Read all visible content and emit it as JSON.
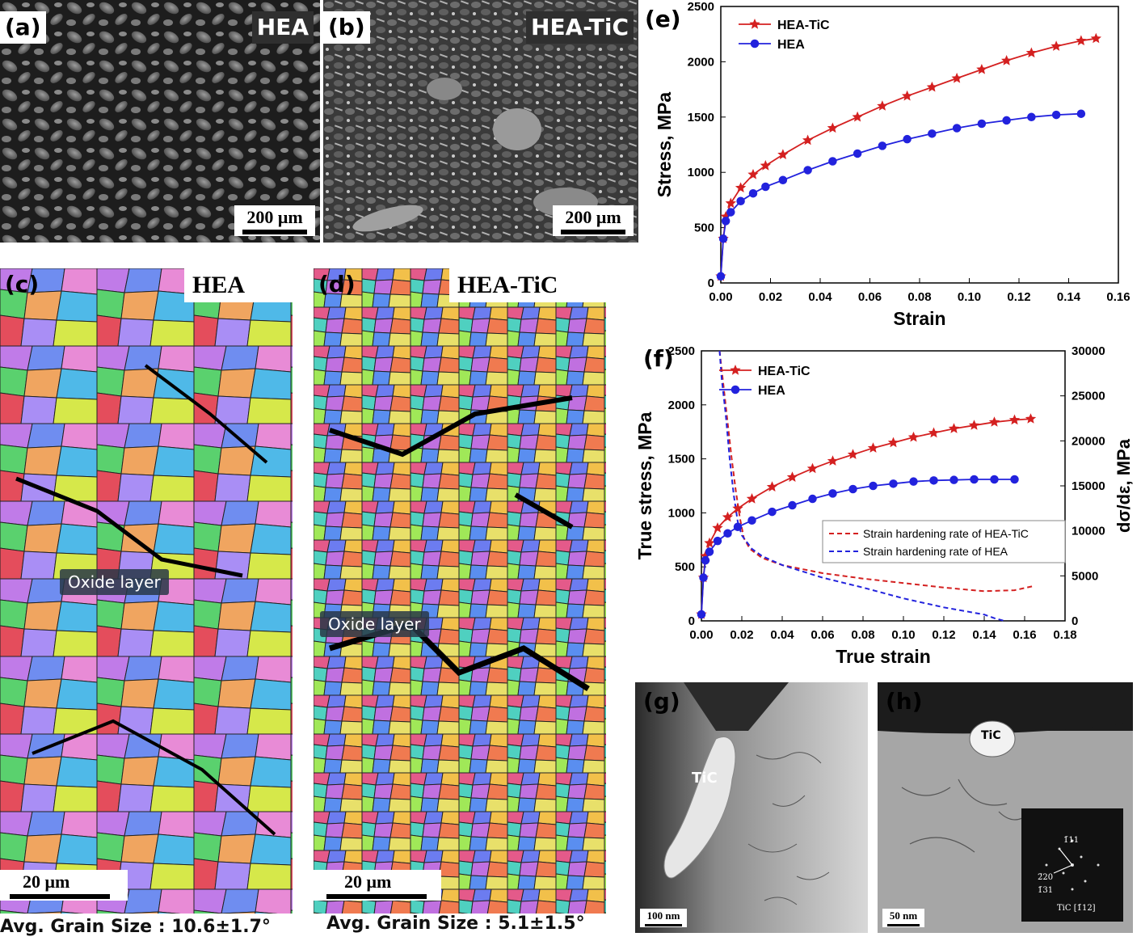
{
  "panels": {
    "a": {
      "tag": "(a)",
      "label": "HEA",
      "scale": "200 μm"
    },
    "b": {
      "tag": "(b)",
      "label": "HEA-TiC",
      "scale": "200 μm"
    },
    "c": {
      "tag": "(c)",
      "label": "HEA",
      "oxide": "Oxide layer",
      "scale": "20 μm",
      "caption": "Avg. Grain Size : 10.6±1.7°"
    },
    "d": {
      "tag": "(d)",
      "label": "HEA-TiC",
      "oxide": "Oxide layer",
      "scale": "20 μm",
      "caption": "Avg. Grain Size : 5.1±1.5°"
    },
    "e": {
      "tag": "(e)"
    },
    "f": {
      "tag": "(f)"
    },
    "g": {
      "tag": "(g)",
      "particle": "TiC",
      "scale": "100 nm"
    },
    "h": {
      "tag": "(h)",
      "particle": "TiC",
      "scale": "50 nm",
      "saed": {
        "labels": [
          "1̄11",
          "2̄20",
          "1̄31"
        ],
        "zone": "TiC [1̄12]"
      }
    }
  },
  "chart_data": [
    {
      "id": "e",
      "type": "line",
      "xlabel": "Strain",
      "ylabel": "Stress, MPa",
      "xlim": [
        0.0,
        0.16
      ],
      "ylim": [
        0,
        2500
      ],
      "xticks": [
        "0.00",
        "0.02",
        "0.04",
        "0.06",
        "0.08",
        "0.10",
        "0.12",
        "0.14",
        "0.16"
      ],
      "yticks": [
        "0",
        "500",
        "1000",
        "1500",
        "2000",
        "2500"
      ],
      "legend_position": "top-left",
      "series": [
        {
          "name": "HEA-TiC",
          "color": "#d42020",
          "marker": "star",
          "x": [
            0.0,
            0.001,
            0.002,
            0.004,
            0.008,
            0.013,
            0.018,
            0.025,
            0.035,
            0.045,
            0.055,
            0.065,
            0.075,
            0.085,
            0.095,
            0.105,
            0.115,
            0.125,
            0.135,
            0.145,
            0.151
          ],
          "y": [
            60,
            400,
            600,
            720,
            860,
            980,
            1060,
            1160,
            1290,
            1400,
            1500,
            1600,
            1690,
            1770,
            1850,
            1930,
            2010,
            2080,
            2140,
            2190,
            2210
          ]
        },
        {
          "name": "HEA",
          "color": "#2222dd",
          "marker": "circle",
          "x": [
            0.0,
            0.001,
            0.002,
            0.004,
            0.008,
            0.013,
            0.018,
            0.025,
            0.035,
            0.045,
            0.055,
            0.065,
            0.075,
            0.085,
            0.095,
            0.105,
            0.115,
            0.125,
            0.135,
            0.145
          ],
          "y": [
            60,
            400,
            560,
            640,
            740,
            810,
            870,
            930,
            1020,
            1100,
            1170,
            1240,
            1300,
            1350,
            1400,
            1440,
            1470,
            1500,
            1520,
            1530
          ]
        }
      ]
    },
    {
      "id": "f",
      "type": "line",
      "xlabel": "True strain",
      "ylabel": "True stress, MPa",
      "y2label": "dσ/dε, MPa",
      "xlim": [
        0.0,
        0.18
      ],
      "ylim": [
        0,
        2500
      ],
      "y2lim": [
        0,
        30000
      ],
      "xticks": [
        "0.00",
        "0.02",
        "0.04",
        "0.06",
        "0.08",
        "0.10",
        "0.12",
        "0.14",
        "0.16",
        "0.18"
      ],
      "yticks": [
        "0",
        "500",
        "1000",
        "1500",
        "2000",
        "2500"
      ],
      "y2ticks": [
        "0",
        "5000",
        "10000",
        "15000",
        "20000",
        "25000",
        "30000"
      ],
      "legend_position": "top-left",
      "series": [
        {
          "name": "HEA-TiC",
          "color": "#d42020",
          "marker": "star",
          "axis": "left",
          "x": [
            0.0,
            0.001,
            0.002,
            0.004,
            0.008,
            0.013,
            0.018,
            0.025,
            0.035,
            0.045,
            0.055,
            0.065,
            0.075,
            0.085,
            0.095,
            0.105,
            0.115,
            0.125,
            0.135,
            0.145,
            0.155,
            0.163
          ],
          "y": [
            60,
            400,
            600,
            720,
            860,
            960,
            1040,
            1130,
            1240,
            1330,
            1410,
            1480,
            1540,
            1600,
            1650,
            1700,
            1740,
            1780,
            1810,
            1840,
            1860,
            1870
          ]
        },
        {
          "name": "HEA",
          "color": "#2222dd",
          "marker": "circle",
          "axis": "left",
          "x": [
            0.0,
            0.001,
            0.002,
            0.004,
            0.008,
            0.013,
            0.018,
            0.025,
            0.035,
            0.045,
            0.055,
            0.065,
            0.075,
            0.085,
            0.095,
            0.105,
            0.115,
            0.125,
            0.135,
            0.145,
            0.155
          ],
          "y": [
            60,
            400,
            560,
            640,
            740,
            810,
            870,
            930,
            1010,
            1070,
            1130,
            1180,
            1220,
            1250,
            1270,
            1290,
            1300,
            1305,
            1310,
            1310,
            1310
          ]
        }
      ],
      "rate_series": [
        {
          "name": "Strain hardening rate of HEA-TiC",
          "color": "#d42020",
          "style": "dashed",
          "axis": "right",
          "x": [
            0.009,
            0.011,
            0.013,
            0.015,
            0.017,
            0.019,
            0.021,
            0.024,
            0.03,
            0.04,
            0.06,
            0.08,
            0.1,
            0.12,
            0.14,
            0.155,
            0.165
          ],
          "y": [
            30000,
            26000,
            22000,
            18000,
            14500,
            11500,
            9200,
            8000,
            7000,
            6200,
            5300,
            4700,
            4200,
            3700,
            3300,
            3400,
            3900
          ]
        },
        {
          "name": "Strain hardening rate of HEA",
          "color": "#2222dd",
          "style": "dashed",
          "axis": "right",
          "x": [
            0.009,
            0.01,
            0.012,
            0.014,
            0.016,
            0.018,
            0.02,
            0.025,
            0.03,
            0.04,
            0.06,
            0.08,
            0.1,
            0.12,
            0.14,
            0.145,
            0.15
          ],
          "y": [
            30000,
            27000,
            23000,
            18000,
            14000,
            11000,
            9500,
            8000,
            7200,
            6200,
            4800,
            3700,
            2500,
            1500,
            700,
            300,
            0
          ]
        }
      ]
    }
  ]
}
